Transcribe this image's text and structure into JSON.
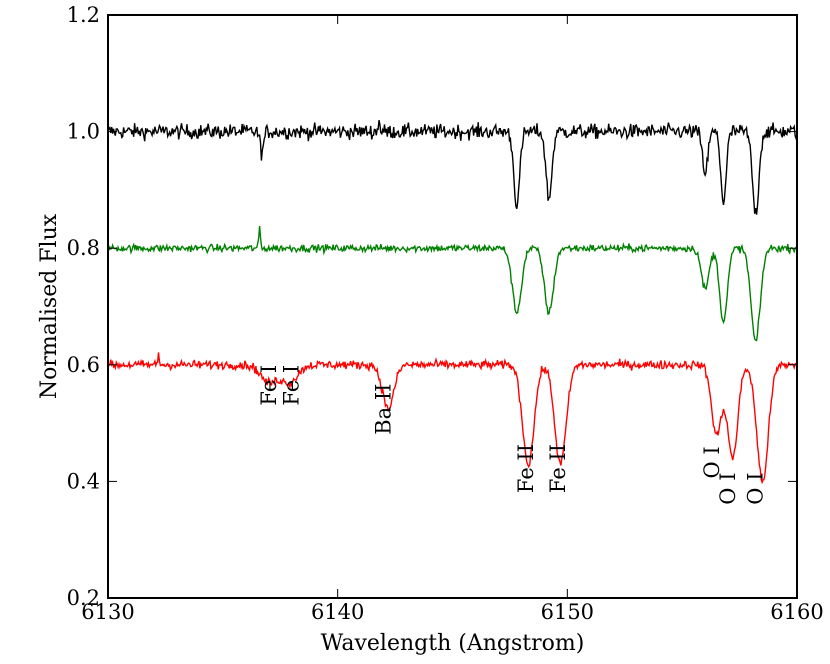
{
  "chart_data": {
    "type": "line",
    "title": "",
    "xlabel": "Wavelength (Angstrom)",
    "ylabel": "Normalised Flux",
    "xlim": [
      6130,
      6160
    ],
    "ylim": [
      0.2,
      1.2
    ],
    "grid": false,
    "legend": "none",
    "x_ticks": [
      6130,
      6140,
      6150,
      6160
    ],
    "x_tick_labels": [
      "6130",
      "6140",
      "6150",
      "6160"
    ],
    "y_ticks": [
      0.2,
      0.4,
      0.6,
      0.8,
      1.0,
      1.2
    ],
    "y_tick_labels": [
      "0.2",
      "0.4",
      "0.6",
      "0.8",
      "1.0",
      "1.2"
    ],
    "series": [
      {
        "color": "#000000",
        "baseline": 1.0,
        "noise": 0.012,
        "absorption_lines": [
          {
            "x": 6136.7,
            "depth": 0.035,
            "width": 0.08
          },
          {
            "x": 6147.8,
            "depth": 0.125,
            "width": 0.13
          },
          {
            "x": 6149.2,
            "depth": 0.115,
            "width": 0.13
          },
          {
            "x": 6156.0,
            "depth": 0.07,
            "width": 0.12
          },
          {
            "x": 6156.8,
            "depth": 0.12,
            "width": 0.12
          },
          {
            "x": 6158.2,
            "depth": 0.14,
            "width": 0.14
          }
        ],
        "spikes": [
          {
            "x": 6141.8,
            "height": 0.025
          }
        ]
      },
      {
        "color": "#008000",
        "baseline": 0.8,
        "noise": 0.006,
        "absorption_lines": [
          {
            "x": 6147.8,
            "depth": 0.11,
            "width": 0.2
          },
          {
            "x": 6149.2,
            "depth": 0.11,
            "width": 0.2
          },
          {
            "x": 6156.0,
            "depth": 0.07,
            "width": 0.17
          },
          {
            "x": 6156.8,
            "depth": 0.125,
            "width": 0.17
          },
          {
            "x": 6158.2,
            "depth": 0.16,
            "width": 0.2
          }
        ],
        "spikes": [
          {
            "x": 6136.6,
            "height": 0.04
          }
        ]
      },
      {
        "color": "#ff0000",
        "baseline": 0.6,
        "noise": 0.007,
        "absorption_lines": [
          {
            "x": 6137.0,
            "depth": 0.03,
            "width": 0.35
          },
          {
            "x": 6137.9,
            "depth": 0.03,
            "width": 0.35
          },
          {
            "x": 6142.2,
            "depth": 0.075,
            "width": 0.25
          },
          {
            "x": 6148.3,
            "depth": 0.17,
            "width": 0.25
          },
          {
            "x": 6149.7,
            "depth": 0.17,
            "width": 0.25
          },
          {
            "x": 6156.5,
            "depth": 0.12,
            "width": 0.22
          },
          {
            "x": 6157.2,
            "depth": 0.16,
            "width": 0.22
          },
          {
            "x": 6158.5,
            "depth": 0.2,
            "width": 0.25
          }
        ],
        "spikes": [
          {
            "x": 6132.2,
            "height": 0.02
          }
        ]
      }
    ],
    "annotations": [
      {
        "text": "Fe I",
        "x": 6137.0,
        "y": 0.53
      },
      {
        "text": "Fe I",
        "x": 6138.0,
        "y": 0.53
      },
      {
        "text": "Ba II",
        "x": 6142.0,
        "y": 0.48
      },
      {
        "text": "Fe II",
        "x": 6148.2,
        "y": 0.38
      },
      {
        "text": "Fe II",
        "x": 6149.6,
        "y": 0.38
      },
      {
        "text": "O I",
        "x": 6156.3,
        "y": 0.405
      },
      {
        "text": "O I",
        "x": 6157.0,
        "y": 0.36
      },
      {
        "text": "O I",
        "x": 6158.2,
        "y": 0.36
      }
    ]
  }
}
